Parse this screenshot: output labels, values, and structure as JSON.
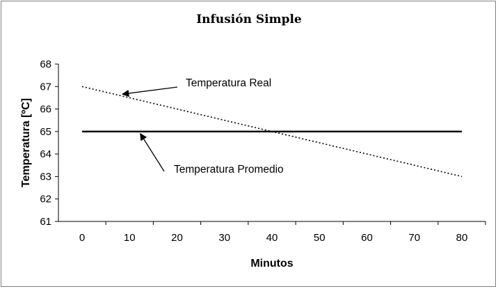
{
  "chart_data": {
    "type": "line",
    "title": "Infusión Simple",
    "xlabel": "Minutos",
    "ylabel": "Temperatura [ºC]",
    "xlim": [
      0,
      80
    ],
    "ylim": [
      61,
      68
    ],
    "x_ticks": [
      0,
      10,
      20,
      30,
      40,
      50,
      60,
      70,
      80
    ],
    "y_ticks": [
      61,
      62,
      63,
      64,
      65,
      66,
      67,
      68
    ],
    "grid": false,
    "legend": "none",
    "series": [
      {
        "name": "Temperatura Real",
        "style": "dotted",
        "x": [
          0,
          80
        ],
        "y": [
          67,
          63
        ]
      },
      {
        "name": "Temperatura Promedio",
        "style": "solid",
        "x": [
          0,
          80
        ],
        "y": [
          65,
          65
        ]
      }
    ],
    "annotations": [
      {
        "text": "Temperatura Real",
        "points_to": {
          "x": 8.5,
          "y": 66.6
        }
      },
      {
        "text": "Temperatura Promedio",
        "points_to": {
          "x": 13,
          "y": 65
        }
      }
    ]
  }
}
